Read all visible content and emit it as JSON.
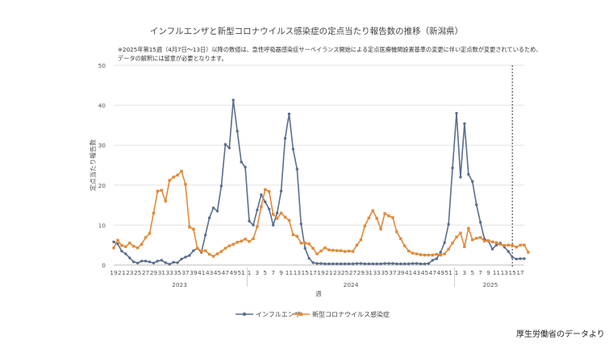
{
  "chart_data": {
    "type": "line",
    "title": "インフルエンザと新型コロナウイルス感染症の定点当たり報告数の推移（新潟県）",
    "notes": [
      "※2025年第15週（4月7日～13日）以降の数値は、急性呼吸器感染症サーベイランス開始による定点医療機関設置基準の変更に伴い定点数が変更されているため、",
      "データの解釈には留意が必要となります。"
    ],
    "xlabel": "週",
    "ylabel": "定点当たり報告数",
    "ylim": [
      0,
      50
    ],
    "yticks": [
      0,
      10,
      20,
      30,
      40,
      50
    ],
    "xtick_labels": [
      "19",
      "21",
      "23",
      "25",
      "27",
      "29",
      "31",
      "33",
      "35",
      "37",
      "39",
      "41",
      "43",
      "45",
      "47",
      "49",
      "51",
      "1",
      "3",
      "5",
      "7",
      "9",
      "11",
      "13",
      "15",
      "17",
      "19",
      "21",
      "23",
      "25",
      "27",
      "29",
      "31",
      "33",
      "35",
      "37",
      "39",
      "41",
      "43",
      "45",
      "47",
      "49",
      "51",
      "1",
      "3",
      "5",
      "7",
      "9",
      "11",
      "13",
      "15",
      "17"
    ],
    "years": [
      "2023",
      "2024",
      "2025"
    ],
    "grid": true,
    "legend_position": "bottom",
    "series": [
      {
        "name": "インフルエンザ",
        "color": "#5a6e8e",
        "marker": "circle",
        "values": [
          5.8,
          5.3,
          3.5,
          2.8,
          1.8,
          0.8,
          0.5,
          1.0,
          1.0,
          0.8,
          0.5,
          1.0,
          1.2,
          0.6,
          0.2,
          0.7,
          0.6,
          1.5,
          2.0,
          2.4,
          3.6,
          4.2,
          3.2,
          7.5,
          11.8,
          14.3,
          13.5,
          19.8,
          30.2,
          29.3,
          41.3,
          33.5,
          25.8,
          24.5,
          11.0,
          10.0,
          13.8,
          17.6,
          15.8,
          14.0,
          10.0,
          13.0,
          18.5,
          31.7,
          37.8,
          29.0,
          24.0,
          10.3,
          4.2,
          1.7,
          0.6,
          0.4,
          0.4,
          0.3,
          0.3,
          0.3,
          0.3,
          0.3,
          0.3,
          0.3,
          0.3,
          0.4,
          0.4,
          0.3,
          0.3,
          0.3,
          0.3,
          0.3,
          0.4,
          0.4,
          0.4,
          0.3,
          0.3,
          0.3,
          0.3,
          0.4,
          0.4,
          0.3,
          0.3,
          0.4,
          1.2,
          1.6,
          3.2,
          5.6,
          10.2,
          24.3,
          38.0,
          22.0,
          35.4,
          22.7,
          20.9,
          15.1,
          10.7,
          6.5,
          6.0,
          4.0,
          5.0,
          5.5,
          4.5,
          3.4,
          2.0,
          1.5,
          1.6,
          1.6
        ]
      },
      {
        "name": "新型コロナウイルス感染症",
        "color": "#e08a38",
        "marker": "square",
        "values": [
          4.3,
          6.2,
          4.9,
          4.6,
          5.5,
          4.7,
          4.3,
          5.2,
          6.9,
          7.9,
          13.0,
          18.5,
          18.7,
          16.0,
          21.2,
          22.0,
          22.5,
          23.5,
          20.2,
          9.5,
          9.0,
          4.2,
          3.5,
          3.6,
          2.7,
          2.2,
          2.8,
          3.4,
          4.2,
          4.8,
          5.2,
          5.7,
          6.0,
          6.5,
          5.9,
          6.6,
          9.6,
          14.6,
          18.9,
          18.4,
          12.7,
          11.7,
          13.0,
          12.0,
          11.2,
          7.6,
          7.2,
          5.5,
          5.5,
          5.3,
          4.2,
          2.8,
          3.5,
          4.3,
          3.8,
          3.7,
          3.6,
          3.6,
          3.4,
          3.5,
          3.4,
          5.0,
          6.3,
          9.8,
          11.8,
          13.6,
          11.7,
          9.0,
          12.9,
          12.3,
          11.9,
          8.3,
          6.6,
          4.8,
          3.5,
          3.0,
          2.8,
          2.6,
          2.5,
          2.5,
          2.5,
          2.7,
          2.5,
          2.8,
          4.0,
          5.5,
          7.0,
          8.0,
          4.6,
          9.2,
          6.3,
          6.7,
          6.9,
          6.0,
          6.1,
          5.8,
          5.6,
          5.2,
          4.9,
          5.0,
          4.9,
          4.5,
          5.0,
          5.0,
          3.2
        ]
      }
    ]
  },
  "source": "厚生労働省のデータより"
}
